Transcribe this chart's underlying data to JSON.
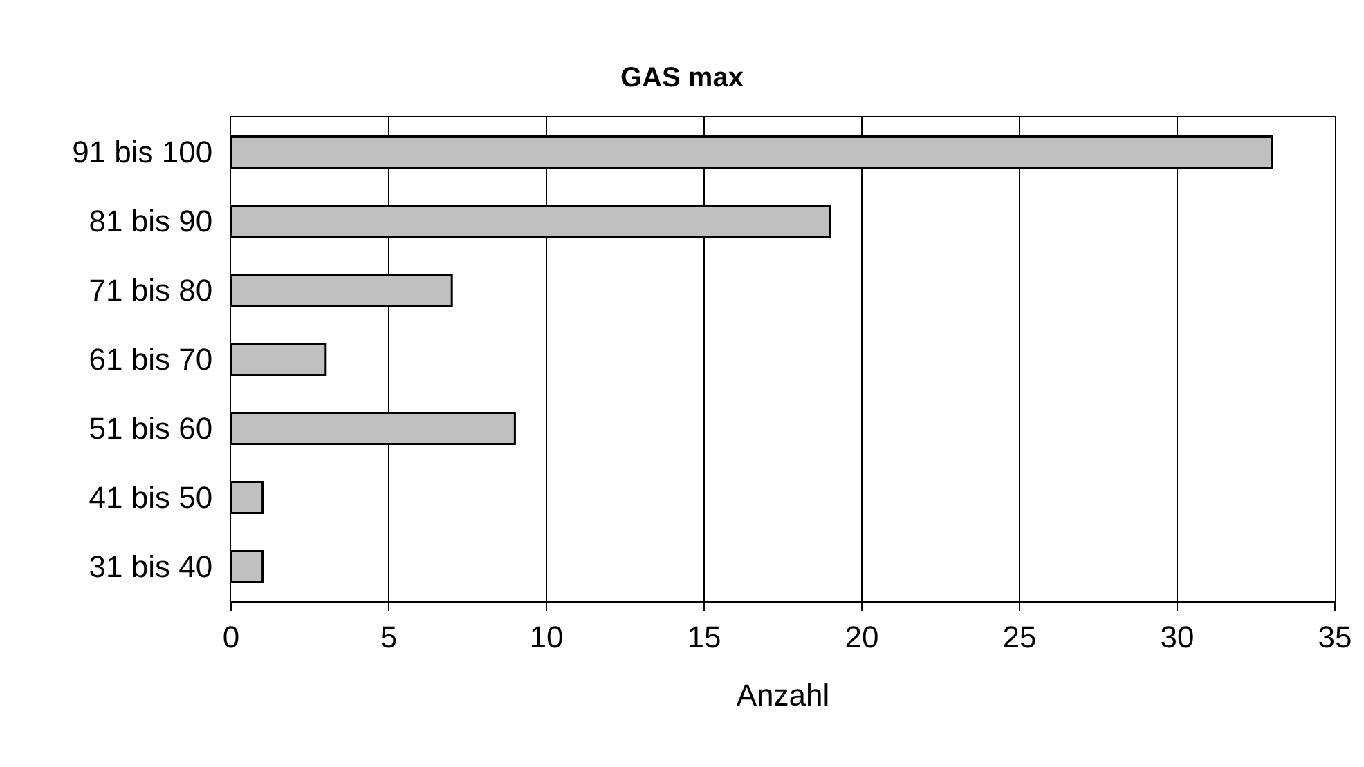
{
  "chart_data": {
    "type": "bar",
    "orientation": "horizontal",
    "title": "GAS max",
    "xlabel": "Anzahl",
    "categories": [
      "91 bis 100",
      "81 bis 90",
      "71 bis 80",
      "61 bis 70",
      "51 bis 60",
      "41 bis 50",
      "31 bis 40"
    ],
    "values": [
      33,
      19,
      7,
      3,
      9,
      1,
      1
    ],
    "color": "#c0c0c0",
    "xlim": [
      0,
      35
    ],
    "xticks": [
      0,
      5,
      10,
      15,
      20,
      25,
      30,
      35
    ],
    "grid": "x"
  }
}
